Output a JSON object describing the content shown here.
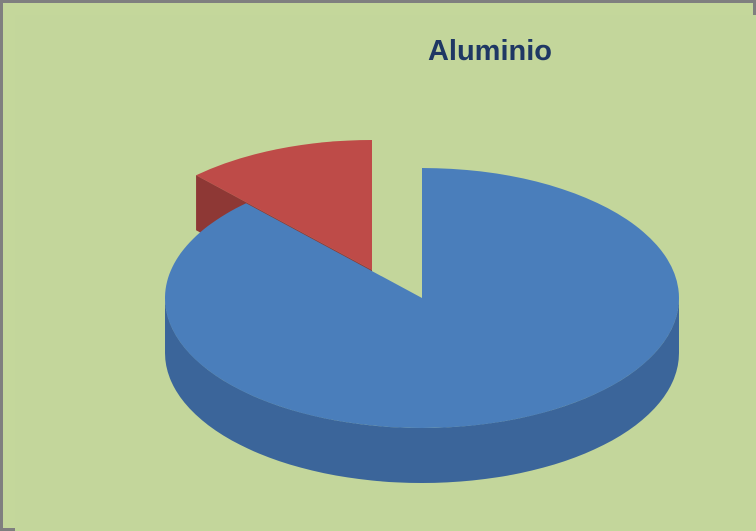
{
  "chart_data": {
    "type": "pie3d",
    "title": "Aluminio",
    "categories": [
      null,
      null
    ],
    "values": [
      88,
      12
    ],
    "colors": [
      "#4a7ebb",
      "#be4b48"
    ],
    "side_colors": [
      "#3b659a",
      "#8e3835"
    ]
  }
}
